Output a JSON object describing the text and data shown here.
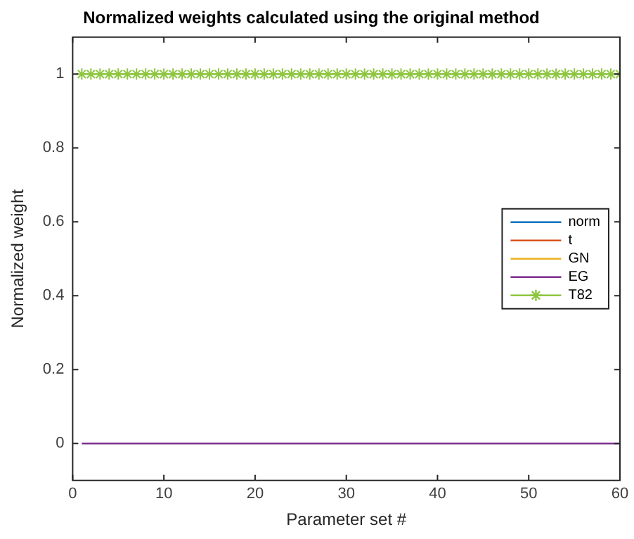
{
  "chart_data": {
    "type": "line",
    "title": "Normalized weights calculated using the original method",
    "xlabel": "Parameter set #",
    "ylabel": "Normalized weight",
    "x": [
      1,
      2,
      3,
      4,
      5,
      6,
      7,
      8,
      9,
      10,
      11,
      12,
      13,
      14,
      15,
      16,
      17,
      18,
      19,
      20,
      21,
      22,
      23,
      24,
      25,
      26,
      27,
      28,
      29,
      30,
      31,
      32,
      33,
      34,
      35,
      36,
      37,
      38,
      39,
      40,
      41,
      42,
      43,
      44,
      45,
      46,
      47,
      48,
      49,
      50,
      51,
      52,
      53,
      54,
      55,
      56,
      57,
      58,
      59,
      60
    ],
    "series": [
      {
        "name": "norm",
        "color": "#0072bd",
        "values": [
          null,
          null,
          null,
          null,
          null,
          null,
          null,
          null,
          null,
          null,
          null,
          null,
          null,
          null,
          null,
          null,
          null,
          null,
          null,
          null,
          null,
          null,
          null,
          null,
          null,
          null,
          null,
          null,
          null,
          null,
          null,
          null,
          null,
          null,
          null,
          null,
          null,
          null,
          null,
          null,
          null,
          null,
          null,
          null,
          null,
          null,
          null,
          null,
          null,
          null,
          null,
          null,
          null,
          null,
          null,
          null,
          null,
          null,
          null,
          null
        ]
      },
      {
        "name": "t",
        "color": "#d95319",
        "values": [
          null,
          null,
          null,
          null,
          null,
          null,
          null,
          null,
          null,
          null,
          null,
          null,
          null,
          null,
          null,
          null,
          null,
          null,
          null,
          null,
          null,
          null,
          null,
          null,
          null,
          null,
          null,
          null,
          null,
          null,
          null,
          null,
          null,
          null,
          null,
          null,
          null,
          null,
          null,
          null,
          null,
          null,
          null,
          null,
          null,
          null,
          null,
          null,
          null,
          null,
          null,
          null,
          null,
          null,
          null,
          null,
          null,
          null,
          null,
          null
        ]
      },
      {
        "name": "GN",
        "color": "#edb120",
        "values": [
          null,
          null,
          null,
          null,
          null,
          null,
          null,
          null,
          null,
          null,
          null,
          null,
          null,
          null,
          null,
          null,
          null,
          null,
          null,
          null,
          null,
          null,
          null,
          null,
          null,
          null,
          null,
          null,
          null,
          null,
          null,
          null,
          null,
          null,
          null,
          null,
          null,
          null,
          null,
          null,
          null,
          null,
          null,
          null,
          null,
          null,
          null,
          null,
          null,
          null,
          null,
          null,
          null,
          null,
          null,
          null,
          null,
          null,
          null,
          null
        ]
      },
      {
        "name": "EG",
        "color": "#7e2f8e",
        "values": [
          0,
          0,
          0,
          0,
          0,
          0,
          0,
          0,
          0,
          0,
          0,
          0,
          0,
          0,
          0,
          0,
          0,
          0,
          0,
          0,
          0,
          0,
          0,
          0,
          0,
          0,
          0,
          0,
          0,
          0,
          0,
          0,
          0,
          0,
          0,
          0,
          0,
          0,
          0,
          0,
          0,
          0,
          0,
          0,
          0,
          0,
          0,
          0,
          0,
          0,
          0,
          0,
          0,
          0,
          0,
          0,
          0,
          0,
          0,
          0
        ]
      },
      {
        "name": "T82",
        "color": "#8dc63f",
        "marker": "cross",
        "values": [
          1,
          1,
          1,
          1,
          1,
          1,
          1,
          1,
          1,
          1,
          1,
          1,
          1,
          1,
          1,
          1,
          1,
          1,
          1,
          1,
          1,
          1,
          1,
          1,
          1,
          1,
          1,
          1,
          1,
          1,
          1,
          1,
          1,
          1,
          1,
          1,
          1,
          1,
          1,
          1,
          1,
          1,
          1,
          1,
          1,
          1,
          1,
          1,
          1,
          1,
          1,
          1,
          1,
          1,
          1,
          1,
          1,
          1,
          1,
          1
        ]
      }
    ],
    "xlim": [
      0,
      60
    ],
    "xticks": [
      0,
      10,
      20,
      30,
      40,
      50,
      60
    ],
    "ylim": [
      -0.1,
      1.1
    ],
    "yticks": [
      0,
      0.2,
      0.4,
      0.6,
      0.8,
      1
    ],
    "legend": "right"
  }
}
